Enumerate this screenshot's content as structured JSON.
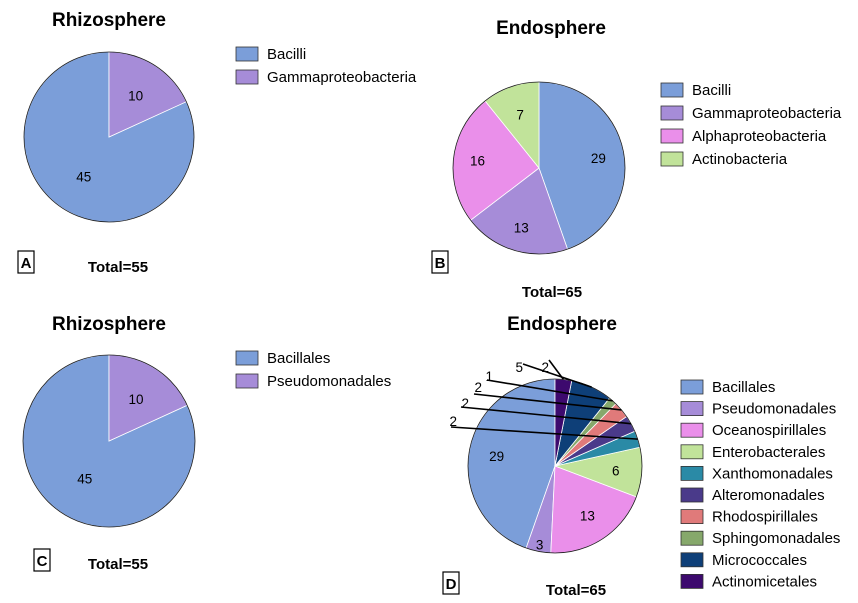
{
  "chart_data": [
    {
      "type": "pie",
      "panel_label": "A",
      "title": "Rhizosphere",
      "total_label": "Total=55",
      "series": [
        {
          "name": "Bacilli",
          "value": 45,
          "color": "#7b9ed9"
        },
        {
          "name": "Gammaproteobacteria",
          "value": 10,
          "color": "#a68cd8"
        }
      ]
    },
    {
      "type": "pie",
      "panel_label": "B",
      "title": "Endosphere",
      "total_label": "Total=65",
      "series": [
        {
          "name": "Bacilli",
          "value": 29,
          "color": "#7b9ed9"
        },
        {
          "name": "Gammaproteobacteria",
          "value": 13,
          "color": "#a68cd8"
        },
        {
          "name": "Alphaproteobacteria",
          "value": 16,
          "color": "#ea8fea"
        },
        {
          "name": "Actinobacteria",
          "value": 7,
          "color": "#c1e39a"
        }
      ]
    },
    {
      "type": "pie",
      "panel_label": "C",
      "title": "Rhizosphere",
      "total_label": "Total=55",
      "series": [
        {
          "name": "Bacillales",
          "value": 45,
          "color": "#7b9ed9"
        },
        {
          "name": "Pseudomonadales",
          "value": 10,
          "color": "#a68cd8"
        }
      ]
    },
    {
      "type": "pie",
      "panel_label": "D",
      "title": "Endosphere",
      "total_label": "Total=65",
      "series": [
        {
          "name": "Bacillales",
          "value": 29,
          "color": "#7b9ed9"
        },
        {
          "name": "Pseudomonadales",
          "value": 3,
          "color": "#a68cd8"
        },
        {
          "name": "Oceanospirillales",
          "value": 13,
          "color": "#ea8fea"
        },
        {
          "name": "Enterobacterales",
          "value": 6,
          "color": "#c1e39a"
        },
        {
          "name": "Xanthomonadales",
          "value": 2,
          "color": "#2a8aa6"
        },
        {
          "name": "Alteromonadales",
          "value": 2,
          "color": "#4a3a8a"
        },
        {
          "name": "Rhodospirillales",
          "value": 2,
          "color": "#e07a7a"
        },
        {
          "name": "Sphingomonadales",
          "value": 1,
          "color": "#86a86b"
        },
        {
          "name": "Micrococcales",
          "value": 5,
          "color": "#0e3f78"
        },
        {
          "name": "Actinomicetales",
          "value": 2,
          "color": "#3d0a6e"
        }
      ]
    }
  ]
}
